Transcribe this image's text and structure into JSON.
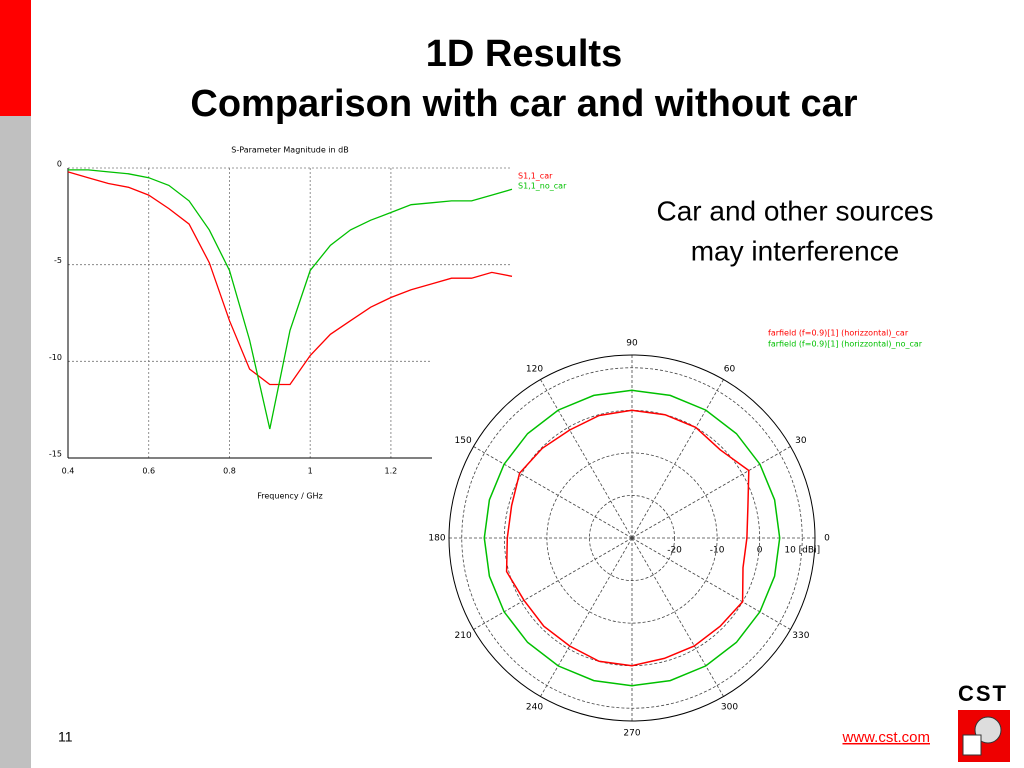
{
  "slide": {
    "title": [
      "1D Results",
      "Comparison with car and without car"
    ],
    "note": [
      "Car and other sources",
      "may interference"
    ],
    "page_number": "11",
    "link": "www.cst.com",
    "logo": "CST"
  },
  "chart_data": [
    {
      "type": "line",
      "title": "S-Parameter Magnitude in dB",
      "x_label": "Frequency / GHz",
      "x": [
        0.4,
        0.45,
        0.5,
        0.55,
        0.6,
        0.65,
        0.7,
        0.75,
        0.8,
        0.85,
        0.9,
        0.95,
        1.0,
        1.05,
        1.1,
        1.15,
        1.2,
        1.25,
        1.3,
        1.35,
        1.4,
        1.45,
        1.5
      ],
      "series": [
        {
          "name": "S1,1_car",
          "color": "#ff0000",
          "values": [
            -0.2,
            -0.5,
            -0.8,
            -1.0,
            -1.4,
            -2.1,
            -2.9,
            -4.9,
            -7.9,
            -10.4,
            -11.2,
            -11.2,
            -9.7,
            -8.6,
            -7.9,
            -7.2,
            -6.7,
            -6.3,
            -6.0,
            -5.7,
            -5.7,
            -5.4,
            -5.6
          ]
        },
        {
          "name": "S1,1_no_car",
          "color": "#00c000",
          "values": [
            -0.1,
            -0.1,
            -0.2,
            -0.3,
            -0.5,
            -0.9,
            -1.7,
            -3.2,
            -5.3,
            -8.9,
            -13.5,
            -8.4,
            -5.3,
            -4.0,
            -3.2,
            -2.7,
            -2.3,
            -1.9,
            -1.8,
            -1.7,
            -1.7,
            -1.4,
            -1.1
          ]
        }
      ],
      "xlim": [
        0.4,
        1.5
      ],
      "xticks": [
        0.4,
        0.6,
        0.8,
        1,
        1.2
      ],
      "ylim": [
        -15,
        0
      ],
      "yticks": [
        0,
        -5,
        -10,
        -15
      ],
      "grid": true
    },
    {
      "type": "polar",
      "theta": [
        0,
        15,
        30,
        45,
        60,
        75,
        90,
        105,
        120,
        135,
        150,
        165,
        180,
        195,
        210,
        225,
        240,
        255,
        270,
        285,
        300,
        315,
        330,
        345
      ],
      "series": [
        {
          "name": "farfield (f=0.9)[1] (horizzontal)_car",
          "color": "#ff0000",
          "values": [
            -3.0,
            -1.8,
            1.7,
            -0.7,
            0.0,
            0.0,
            0.0,
            -0.2,
            -0.7,
            -0.2,
            0.5,
            -0.7,
            -0.7,
            0.5,
            -0.7,
            -0.7,
            -0.7,
            0.0,
            0.0,
            -0.7,
            -0.7,
            -0.7,
            0.0,
            -3.0
          ]
        },
        {
          "name": "farfield (f=0.9)[1] (horizzontal)_no_car",
          "color": "#00c000",
          "values": [
            4.7,
            4.7,
            4.7,
            4.7,
            4.7,
            4.7,
            4.7,
            4.7,
            4.7,
            4.7,
            4.7,
            4.7,
            4.7,
            4.7,
            4.7,
            4.7,
            4.7,
            4.7,
            4.7,
            4.7,
            4.7,
            4.7,
            4.7,
            4.7
          ]
        }
      ],
      "rlim": [
        -30,
        13
      ],
      "rticks": [
        -20,
        -10,
        0,
        {
          "value": 10,
          "label": "10 [dBi]"
        }
      ],
      "thetaticks": [
        0,
        30,
        60,
        90,
        120,
        150,
        180,
        210,
        240,
        270,
        300,
        330
      ]
    }
  ]
}
